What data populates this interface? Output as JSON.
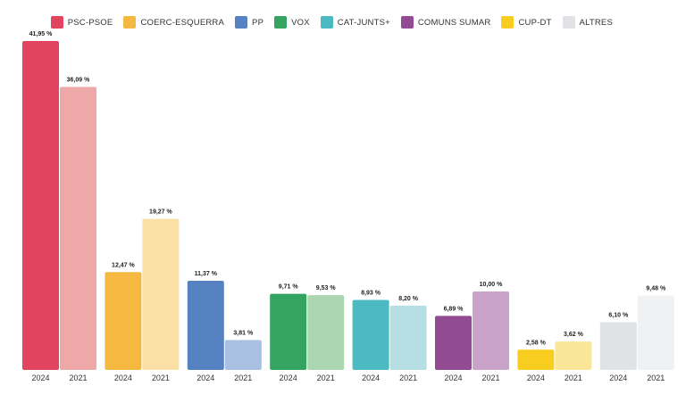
{
  "chart_data": {
    "type": "bar",
    "title": "",
    "xlabel": "",
    "ylabel": "",
    "ylim": [
      0,
      42
    ],
    "grid": false,
    "legend_position": "top-right",
    "group_labels": [
      "2024",
      "2021"
    ],
    "groups": [
      {
        "name": "PSC-PSOE",
        "color_2024": "#e0445f",
        "color_2021": "#efa8a8",
        "values": [
          41.95,
          36.09
        ],
        "labels": [
          "41,95 %",
          "36,09 %"
        ]
      },
      {
        "name": "COERC-ESQUERRA",
        "color_2024": "#f5b942",
        "color_2021": "#fbe0a6",
        "values": [
          12.47,
          19.27
        ],
        "labels": [
          "12,47 %",
          "19,27 %"
        ]
      },
      {
        "name": "PP",
        "color_2024": "#5782c1",
        "color_2021": "#aac0e2",
        "values": [
          11.37,
          3.81
        ],
        "labels": [
          "11,37 %",
          "3,81 %"
        ]
      },
      {
        "name": "VOX",
        "color_2024": "#34a460",
        "color_2021": "#acd5b1",
        "values": [
          9.71,
          9.53
        ],
        "labels": [
          "9,71 %",
          "9,53 %"
        ]
      },
      {
        "name": "CAT-JUNTS+",
        "color_2024": "#4bbac2",
        "color_2021": "#b5dfe2",
        "values": [
          8.93,
          8.2
        ],
        "labels": [
          "8,93 %",
          "8,20 %"
        ]
      },
      {
        "name": "COMUNS SUMAR",
        "color_2024": "#924a93",
        "color_2021": "#c9a3c9",
        "values": [
          6.89,
          10.0
        ],
        "labels": [
          "6,89 %",
          "10,00 %"
        ]
      },
      {
        "name": "CUP-DT",
        "color_2024": "#f7cd20",
        "color_2021": "#fbe698",
        "values": [
          2.58,
          3.62
        ],
        "labels": [
          "2,58 %",
          "3,62 %"
        ]
      },
      {
        "name": "ALTRES",
        "color_2024": "#e1e2e6",
        "color_2021": "#f0f1f3",
        "values": [
          6.1,
          9.48
        ],
        "labels": [
          "6,10 %",
          "9,48 %"
        ]
      }
    ]
  },
  "legend": [
    {
      "label": "PSC-PSOE",
      "color": "#e0445f"
    },
    {
      "label": "COERC-ESQUERRA",
      "color": "#f5b942"
    },
    {
      "label": "PP",
      "color": "#5782c1"
    },
    {
      "label": "VOX",
      "color": "#34a460"
    },
    {
      "label": "CAT-JUNTS+",
      "color": "#4bbac2"
    },
    {
      "label": "COMUNS SUMAR",
      "color": "#924a93"
    },
    {
      "label": "CUP-DT",
      "color": "#f7cd20"
    },
    {
      "label": "ALTRES",
      "color": "#e1e2e6"
    }
  ]
}
